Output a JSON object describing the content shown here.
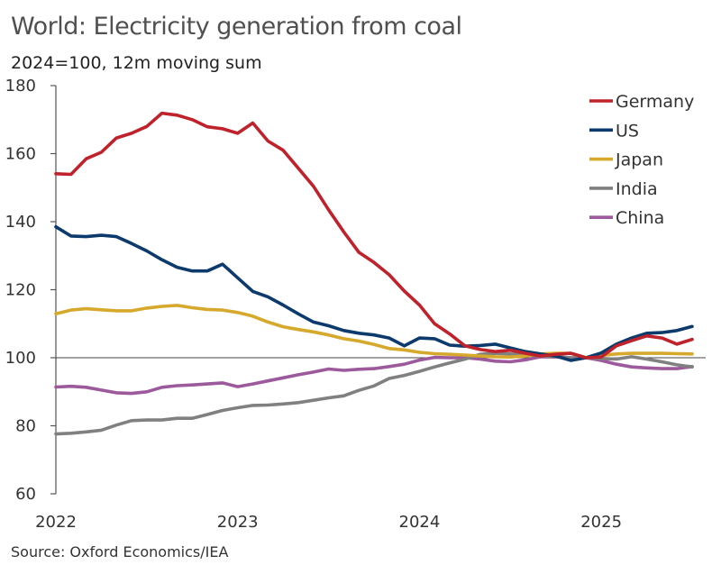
{
  "chart_data": {
    "type": "line",
    "title": "World: Electricity generation from coal",
    "subtitle": "2024=100, 12m moving sum",
    "source": "Source: Oxford Economics/IEA",
    "xlabel": "",
    "ylabel": "",
    "ylim": [
      60,
      180
    ],
    "yticks": [
      60,
      80,
      100,
      120,
      140,
      160,
      180
    ],
    "xticks": [
      "2022",
      "2023",
      "2024",
      "2025"
    ],
    "reference_line": 100,
    "grid": false,
    "legend_position": "top-right",
    "x": [
      "2022-01",
      "2022-02",
      "2022-03",
      "2022-04",
      "2022-05",
      "2022-06",
      "2022-07",
      "2022-08",
      "2022-09",
      "2022-10",
      "2022-11",
      "2022-12",
      "2023-01",
      "2023-02",
      "2023-03",
      "2023-04",
      "2023-05",
      "2023-06",
      "2023-07",
      "2023-08",
      "2023-09",
      "2023-10",
      "2023-11",
      "2023-12",
      "2024-01",
      "2024-02",
      "2024-03",
      "2024-04",
      "2024-05",
      "2024-06",
      "2024-07",
      "2024-08",
      "2024-09",
      "2024-10",
      "2024-11",
      "2024-12",
      "2025-01",
      "2025-02",
      "2025-03",
      "2025-04",
      "2025-05",
      "2025-06",
      "2025-07"
    ],
    "series": [
      {
        "name": "Germany",
        "color": "#c0222c",
        "values": [
          154.1,
          153.9,
          158.5,
          160.4,
          164.6,
          166,
          168,
          171.9,
          171.3,
          170,
          167.9,
          167.3,
          166,
          169,
          163.7,
          161,
          155.7,
          150.4,
          143.5,
          137,
          131,
          128,
          124.4,
          119.6,
          115.5,
          110,
          107,
          103.5,
          102.4,
          101.8,
          102.2,
          101.3,
          100.5,
          101,
          101.3,
          100,
          100.2,
          103.5,
          105,
          106.4,
          105.8,
          104,
          105.4
        ]
      },
      {
        "name": "US",
        "color": "#0c3a6c",
        "values": [
          138.5,
          135.8,
          135.6,
          136,
          135.6,
          133.6,
          131.4,
          128.8,
          126.6,
          125.5,
          125.5,
          127.5,
          123.5,
          119.5,
          117.9,
          115.5,
          112.9,
          110.5,
          109.4,
          108,
          107.2,
          106.7,
          105.8,
          103.5,
          105.8,
          105.6,
          103.7,
          103.4,
          103.6,
          104,
          102.9,
          101.8,
          101.1,
          100.5,
          99.2,
          100,
          101.4,
          104,
          105.8,
          107.2,
          107.4,
          108,
          109.2
        ]
      },
      {
        "name": "Japan",
        "color": "#d6a82c",
        "values": [
          112.9,
          114,
          114.4,
          114.1,
          113.8,
          113.8,
          114.6,
          115.1,
          115.4,
          114.7,
          114.2,
          114,
          113.3,
          112.2,
          110.5,
          109.1,
          108.3,
          107.6,
          106.7,
          105.6,
          104.9,
          103.9,
          102.7,
          102.3,
          101.6,
          101.2,
          101,
          100.8,
          100.5,
          100.3,
          100.2,
          100.5,
          101.1,
          101.3,
          101.3,
          100,
          100.7,
          101.1,
          101.3,
          101.3,
          101.3,
          101.2,
          101.1
        ]
      },
      {
        "name": "India",
        "color": "#808080",
        "values": [
          77.6,
          77.8,
          78.2,
          78.7,
          80.2,
          81.5,
          81.7,
          81.7,
          82.2,
          82.2,
          83.3,
          84.5,
          85.3,
          86,
          86.1,
          86.4,
          86.8,
          87.5,
          88.2,
          88.8,
          90.4,
          91.7,
          93.9,
          94.8,
          96,
          97.3,
          98.5,
          99.6,
          101,
          101.3,
          101.1,
          100.8,
          100.5,
          100.3,
          100,
          100,
          99.8,
          99.6,
          100.3,
          99.6,
          98.8,
          97.9,
          97.3
        ]
      },
      {
        "name": "China",
        "color": "#9c5a9c",
        "values": [
          91.4,
          91.6,
          91.3,
          90.5,
          89.7,
          89.5,
          90,
          91.3,
          91.8,
          92,
          92.3,
          92.6,
          91.5,
          92.3,
          93.2,
          94.1,
          95,
          95.8,
          96.7,
          96.3,
          96.6,
          96.8,
          97.4,
          98.1,
          99.3,
          100.1,
          100,
          100,
          99.6,
          99,
          98.8,
          99.4,
          100.3,
          100.2,
          100,
          100,
          99.2,
          98.1,
          97.3,
          97,
          96.8,
          96.8,
          97.4
        ]
      }
    ]
  }
}
